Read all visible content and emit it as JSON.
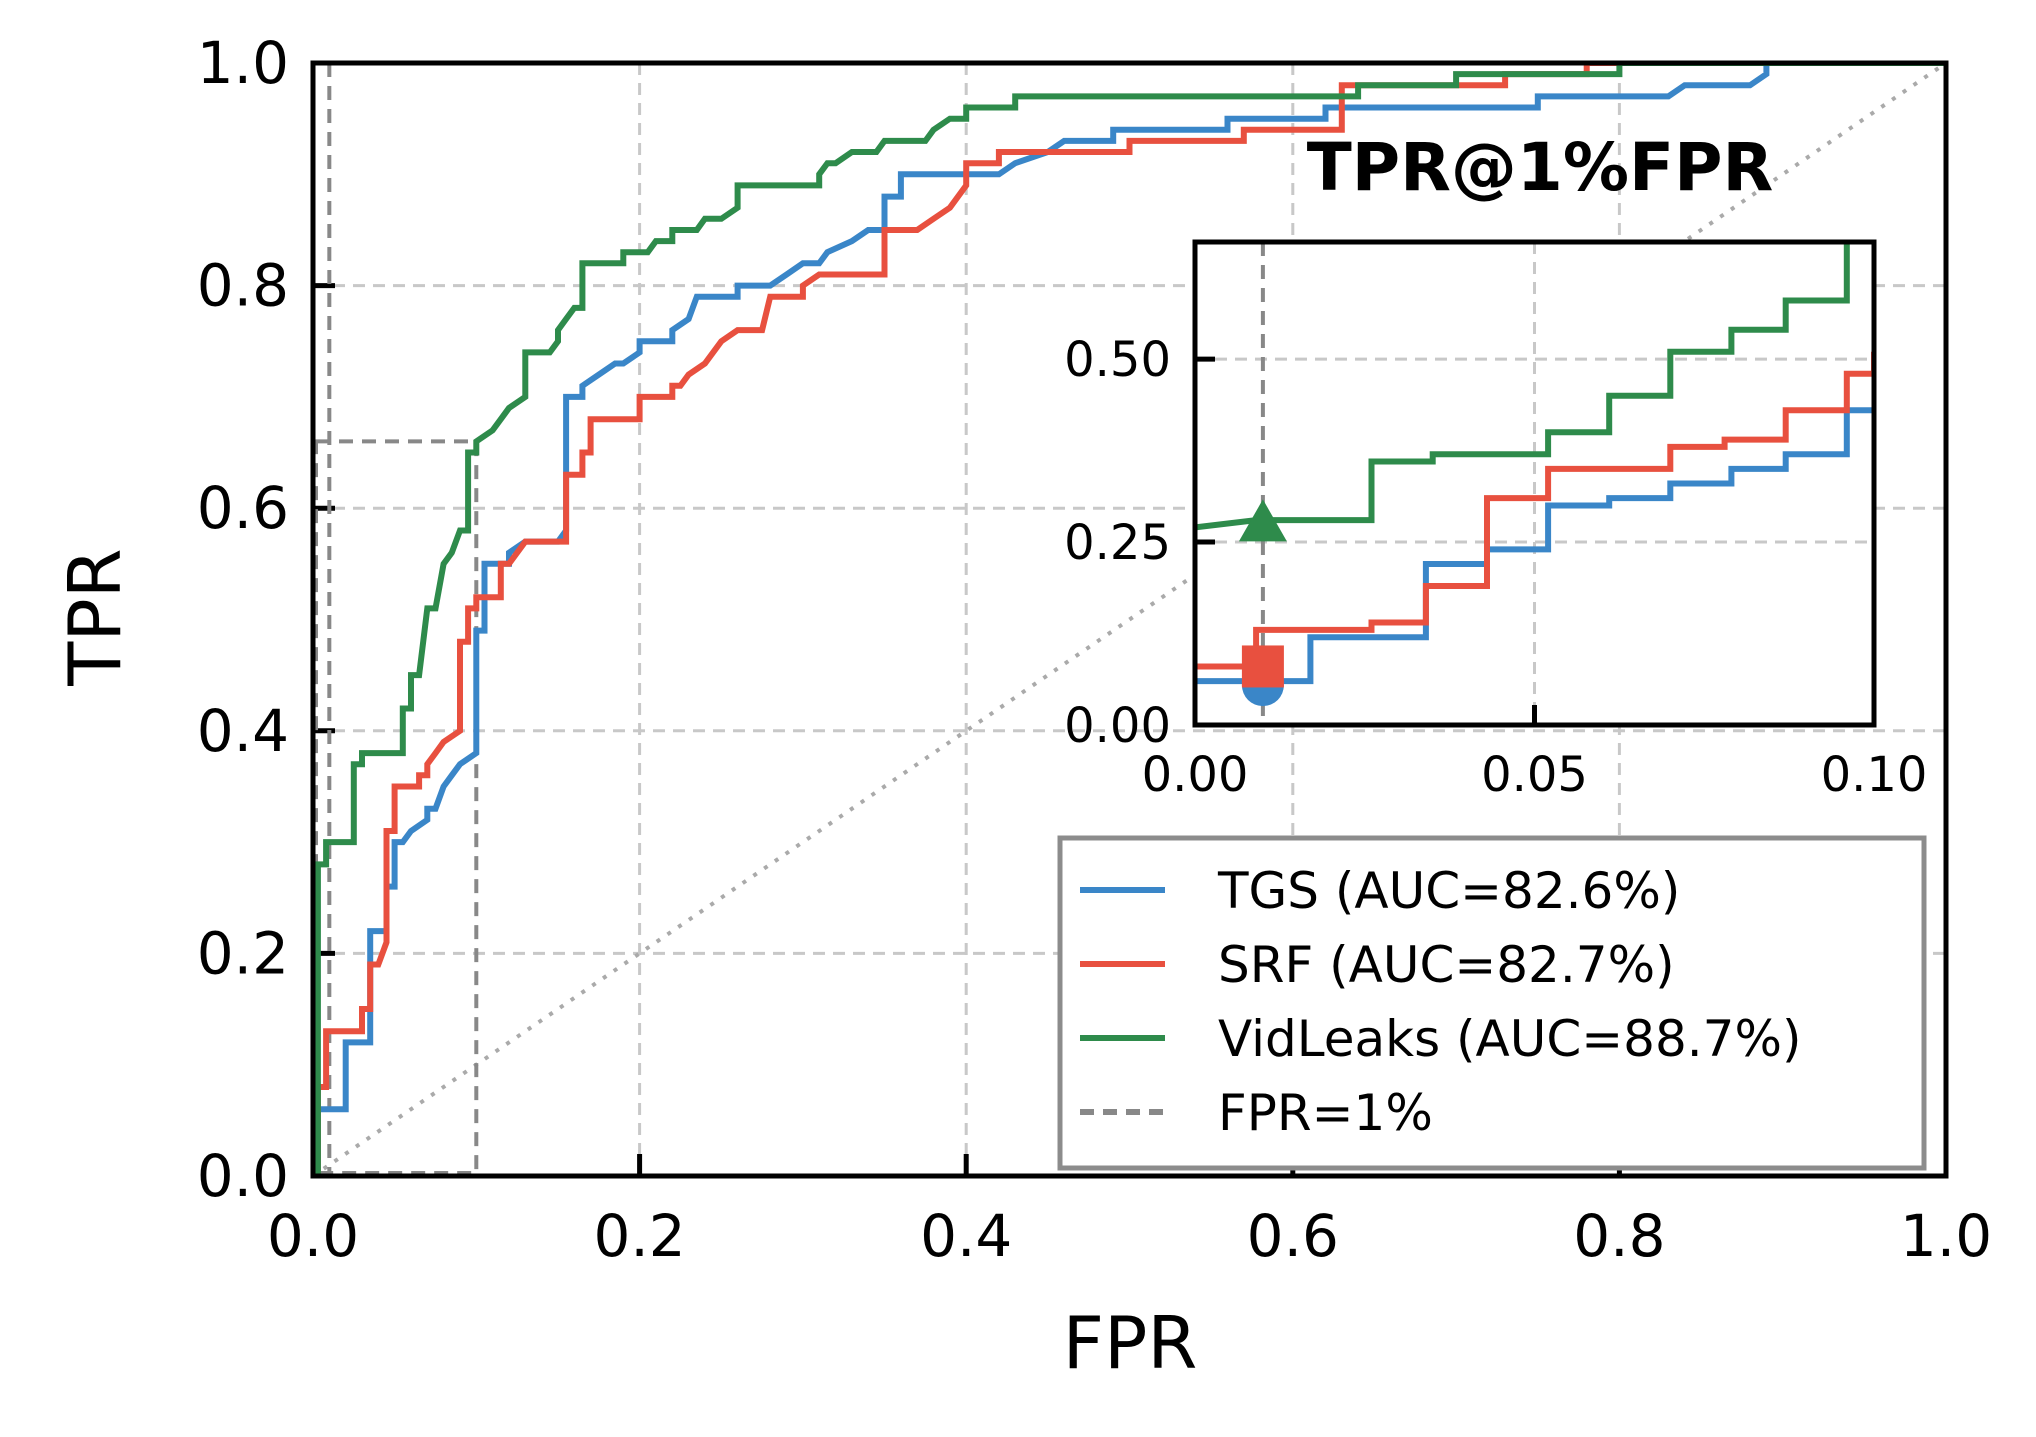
{
  "chart_data": {
    "type": "line",
    "title": "",
    "xlabel": "FPR",
    "ylabel": "TPR",
    "xlim": [
      0,
      1
    ],
    "ylim": [
      0,
      1
    ],
    "grid": true,
    "legend_position": "lower-right",
    "xticks": [
      "0.0",
      "0.2",
      "0.4",
      "0.6",
      "0.8",
      "1.0"
    ],
    "yticks": [
      "0.0",
      "0.2",
      "0.4",
      "0.6",
      "0.8",
      "1.0"
    ],
    "colors": {
      "TGS": "#3a86c8",
      "SRF": "#e8503f",
      "VidLeaks": "#2e8b4b",
      "FPR=1%": "#888888",
      "chance": "#aaaaaa"
    },
    "series": [
      {
        "name": "TGS (AUC=82.6%)",
        "key": "TGS",
        "points": [
          [
            0,
            0
          ],
          [
            0.003,
            0
          ],
          [
            0.003,
            0.06
          ],
          [
            0.01,
            0.06
          ],
          [
            0.01,
            0.06
          ],
          [
            0.02,
            0.06
          ],
          [
            0.02,
            0.12
          ],
          [
            0.035,
            0.12
          ],
          [
            0.035,
            0.22
          ],
          [
            0.045,
            0.22
          ],
          [
            0.045,
            0.26
          ],
          [
            0.05,
            0.26
          ],
          [
            0.05,
            0.3
          ],
          [
            0.055,
            0.3
          ],
          [
            0.06,
            0.31
          ],
          [
            0.07,
            0.32
          ],
          [
            0.07,
            0.33
          ],
          [
            0.075,
            0.33
          ],
          [
            0.08,
            0.35
          ],
          [
            0.085,
            0.36
          ],
          [
            0.09,
            0.37
          ],
          [
            0.1,
            0.38
          ],
          [
            0.1,
            0.43
          ],
          [
            0.1,
            0.49
          ],
          [
            0.105,
            0.49
          ],
          [
            0.105,
            0.55
          ],
          [
            0.12,
            0.55
          ],
          [
            0.12,
            0.56
          ],
          [
            0.13,
            0.57
          ],
          [
            0.15,
            0.57
          ],
          [
            0.155,
            0.58
          ],
          [
            0.155,
            0.7
          ],
          [
            0.165,
            0.7
          ],
          [
            0.165,
            0.71
          ],
          [
            0.175,
            0.72
          ],
          [
            0.185,
            0.73
          ],
          [
            0.19,
            0.73
          ],
          [
            0.2,
            0.74
          ],
          [
            0.2,
            0.75
          ],
          [
            0.22,
            0.75
          ],
          [
            0.22,
            0.76
          ],
          [
            0.23,
            0.77
          ],
          [
            0.235,
            0.79
          ],
          [
            0.26,
            0.79
          ],
          [
            0.26,
            0.8
          ],
          [
            0.28,
            0.8
          ],
          [
            0.29,
            0.81
          ],
          [
            0.3,
            0.82
          ],
          [
            0.31,
            0.82
          ],
          [
            0.315,
            0.83
          ],
          [
            0.33,
            0.84
          ],
          [
            0.34,
            0.85
          ],
          [
            0.35,
            0.85
          ],
          [
            0.35,
            0.88
          ],
          [
            0.36,
            0.88
          ],
          [
            0.36,
            0.9
          ],
          [
            0.42,
            0.9
          ],
          [
            0.43,
            0.91
          ],
          [
            0.45,
            0.92
          ],
          [
            0.46,
            0.93
          ],
          [
            0.49,
            0.93
          ],
          [
            0.49,
            0.94
          ],
          [
            0.56,
            0.94
          ],
          [
            0.56,
            0.95
          ],
          [
            0.62,
            0.95
          ],
          [
            0.62,
            0.96
          ],
          [
            0.75,
            0.96
          ],
          [
            0.75,
            0.97
          ],
          [
            0.83,
            0.97
          ],
          [
            0.84,
            0.98
          ],
          [
            0.88,
            0.98
          ],
          [
            0.89,
            0.99
          ],
          [
            0.89,
            1.0
          ],
          [
            1.0,
            1.0
          ]
        ]
      },
      {
        "name": "SRF (AUC=82.7%)",
        "key": "SRF",
        "points": [
          [
            0,
            0
          ],
          [
            0.003,
            0
          ],
          [
            0.003,
            0.08
          ],
          [
            0.008,
            0.08
          ],
          [
            0.008,
            0.13
          ],
          [
            0.03,
            0.13
          ],
          [
            0.03,
            0.15
          ],
          [
            0.035,
            0.15
          ],
          [
            0.035,
            0.19
          ],
          [
            0.04,
            0.19
          ],
          [
            0.045,
            0.21
          ],
          [
            0.045,
            0.31
          ],
          [
            0.05,
            0.31
          ],
          [
            0.05,
            0.35
          ],
          [
            0.065,
            0.35
          ],
          [
            0.065,
            0.36
          ],
          [
            0.07,
            0.36
          ],
          [
            0.07,
            0.37
          ],
          [
            0.075,
            0.38
          ],
          [
            0.08,
            0.39
          ],
          [
            0.09,
            0.4
          ],
          [
            0.09,
            0.48
          ],
          [
            0.095,
            0.48
          ],
          [
            0.095,
            0.51
          ],
          [
            0.1,
            0.51
          ],
          [
            0.1,
            0.52
          ],
          [
            0.115,
            0.52
          ],
          [
            0.115,
            0.55
          ],
          [
            0.12,
            0.55
          ],
          [
            0.13,
            0.57
          ],
          [
            0.155,
            0.57
          ],
          [
            0.155,
            0.63
          ],
          [
            0.165,
            0.63
          ],
          [
            0.165,
            0.65
          ],
          [
            0.17,
            0.65
          ],
          [
            0.17,
            0.68
          ],
          [
            0.2,
            0.68
          ],
          [
            0.2,
            0.7
          ],
          [
            0.22,
            0.7
          ],
          [
            0.22,
            0.71
          ],
          [
            0.225,
            0.71
          ],
          [
            0.23,
            0.72
          ],
          [
            0.24,
            0.73
          ],
          [
            0.25,
            0.75
          ],
          [
            0.26,
            0.76
          ],
          [
            0.275,
            0.76
          ],
          [
            0.28,
            0.79
          ],
          [
            0.3,
            0.79
          ],
          [
            0.3,
            0.8
          ],
          [
            0.31,
            0.81
          ],
          [
            0.35,
            0.81
          ],
          [
            0.35,
            0.85
          ],
          [
            0.37,
            0.85
          ],
          [
            0.38,
            0.86
          ],
          [
            0.39,
            0.87
          ],
          [
            0.4,
            0.89
          ],
          [
            0.4,
            0.91
          ],
          [
            0.42,
            0.91
          ],
          [
            0.42,
            0.92
          ],
          [
            0.5,
            0.92
          ],
          [
            0.5,
            0.93
          ],
          [
            0.57,
            0.93
          ],
          [
            0.57,
            0.94
          ],
          [
            0.63,
            0.94
          ],
          [
            0.63,
            0.97
          ],
          [
            0.63,
            0.98
          ],
          [
            0.73,
            0.98
          ],
          [
            0.73,
            0.99
          ],
          [
            0.78,
            0.99
          ],
          [
            0.78,
            1.0
          ],
          [
            1.0,
            1.0
          ]
        ]
      },
      {
        "name": "VidLeaks (AUC=88.7%)",
        "key": "VidLeaks",
        "points": [
          [
            0,
            0
          ],
          [
            0.003,
            0
          ],
          [
            0.003,
            0.28
          ],
          [
            0.008,
            0.28
          ],
          [
            0.008,
            0.3
          ],
          [
            0.025,
            0.3
          ],
          [
            0.025,
            0.37
          ],
          [
            0.03,
            0.37
          ],
          [
            0.03,
            0.38
          ],
          [
            0.05,
            0.38
          ],
          [
            0.05,
            0.38
          ],
          [
            0.055,
            0.38
          ],
          [
            0.055,
            0.42
          ],
          [
            0.06,
            0.42
          ],
          [
            0.06,
            0.45
          ],
          [
            0.065,
            0.45
          ],
          [
            0.07,
            0.51
          ],
          [
            0.075,
            0.51
          ],
          [
            0.08,
            0.55
          ],
          [
            0.085,
            0.56
          ],
          [
            0.09,
            0.58
          ],
          [
            0.095,
            0.58
          ],
          [
            0.095,
            0.65
          ],
          [
            0.1,
            0.65
          ],
          [
            0.1,
            0.66
          ],
          [
            0.11,
            0.67
          ],
          [
            0.115,
            0.68
          ],
          [
            0.12,
            0.69
          ],
          [
            0.13,
            0.7
          ],
          [
            0.13,
            0.74
          ],
          [
            0.145,
            0.74
          ],
          [
            0.15,
            0.75
          ],
          [
            0.15,
            0.76
          ],
          [
            0.155,
            0.77
          ],
          [
            0.16,
            0.78
          ],
          [
            0.165,
            0.78
          ],
          [
            0.165,
            0.82
          ],
          [
            0.19,
            0.82
          ],
          [
            0.19,
            0.83
          ],
          [
            0.205,
            0.83
          ],
          [
            0.21,
            0.84
          ],
          [
            0.22,
            0.84
          ],
          [
            0.22,
            0.85
          ],
          [
            0.235,
            0.85
          ],
          [
            0.24,
            0.86
          ],
          [
            0.25,
            0.86
          ],
          [
            0.26,
            0.87
          ],
          [
            0.26,
            0.89
          ],
          [
            0.31,
            0.89
          ],
          [
            0.31,
            0.9
          ],
          [
            0.315,
            0.91
          ],
          [
            0.32,
            0.91
          ],
          [
            0.33,
            0.92
          ],
          [
            0.345,
            0.92
          ],
          [
            0.35,
            0.93
          ],
          [
            0.375,
            0.93
          ],
          [
            0.38,
            0.94
          ],
          [
            0.39,
            0.95
          ],
          [
            0.4,
            0.95
          ],
          [
            0.4,
            0.96
          ],
          [
            0.43,
            0.96
          ],
          [
            0.43,
            0.97
          ],
          [
            0.64,
            0.97
          ],
          [
            0.64,
            0.98
          ],
          [
            0.7,
            0.98
          ],
          [
            0.7,
            0.99
          ],
          [
            0.8,
            0.99
          ],
          [
            0.8,
            1.0
          ],
          [
            1.0,
            1.0
          ]
        ]
      }
    ],
    "chance_line": [
      [
        0,
        0
      ],
      [
        1,
        1
      ]
    ],
    "fpr_line": {
      "name": "FPR=1%",
      "x": 0.01
    },
    "zoom_box": {
      "x0": 0.0,
      "x1": 0.1,
      "y0": 0.0,
      "y1": 0.66
    },
    "inset": {
      "title": "TPR@1%FPR",
      "xlim": [
        0,
        0.1
      ],
      "ylim": [
        0,
        0.66
      ],
      "xticks": [
        "0.00",
        "0.05",
        "0.10"
      ],
      "yticks": [
        "0.00",
        "0.25",
        "0.50"
      ],
      "xtick_values": [
        0,
        0.05,
        0.1
      ],
      "ytick_values": [
        0,
        0.25,
        0.5
      ],
      "series": [
        {
          "key": "TGS",
          "points": [
            [
              0,
              0.06
            ],
            [
              0.017,
              0.06
            ],
            [
              0.017,
              0.12
            ],
            [
              0.034,
              0.12
            ],
            [
              0.034,
              0.22
            ],
            [
              0.043,
              0.22
            ],
            [
              0.043,
              0.24
            ],
            [
              0.052,
              0.24
            ],
            [
              0.052,
              0.3
            ],
            [
              0.061,
              0.3
            ],
            [
              0.061,
              0.31
            ],
            [
              0.07,
              0.31
            ],
            [
              0.07,
              0.33
            ],
            [
              0.079,
              0.33
            ],
            [
              0.079,
              0.35
            ],
            [
              0.087,
              0.35
            ],
            [
              0.087,
              0.37
            ],
            [
              0.096,
              0.37
            ],
            [
              0.096,
              0.43
            ],
            [
              0.1,
              0.43
            ]
          ]
        },
        {
          "key": "SRF",
          "points": [
            [
              0,
              0.08
            ],
            [
              0.009,
              0.08
            ],
            [
              0.009,
              0.13
            ],
            [
              0.026,
              0.13
            ],
            [
              0.026,
              0.14
            ],
            [
              0.034,
              0.14
            ],
            [
              0.034,
              0.19
            ],
            [
              0.043,
              0.19
            ],
            [
              0.043,
              0.31
            ],
            [
              0.052,
              0.31
            ],
            [
              0.052,
              0.35
            ],
            [
              0.07,
              0.35
            ],
            [
              0.07,
              0.38
            ],
            [
              0.078,
              0.38
            ],
            [
              0.078,
              0.39
            ],
            [
              0.087,
              0.39
            ],
            [
              0.087,
              0.43
            ],
            [
              0.096,
              0.43
            ],
            [
              0.096,
              0.48
            ],
            [
              0.1,
              0.48
            ],
            [
              0.1,
              0.51
            ]
          ]
        },
        {
          "key": "VidLeaks",
          "points": [
            [
              0,
              0.27
            ],
            [
              0.009,
              0.28
            ],
            [
              0.026,
              0.28
            ],
            [
              0.026,
              0.36
            ],
            [
              0.035,
              0.36
            ],
            [
              0.035,
              0.37
            ],
            [
              0.052,
              0.37
            ],
            [
              0.052,
              0.4
            ],
            [
              0.061,
              0.4
            ],
            [
              0.061,
              0.45
            ],
            [
              0.07,
              0.45
            ],
            [
              0.07,
              0.51
            ],
            [
              0.079,
              0.51
            ],
            [
              0.079,
              0.54
            ],
            [
              0.087,
              0.54
            ],
            [
              0.087,
              0.58
            ],
            [
              0.096,
              0.58
            ],
            [
              0.096,
              0.66
            ]
          ]
        }
      ],
      "markers": [
        {
          "key": "TGS",
          "shape": "circle",
          "x": 0.01,
          "y": 0.06
        },
        {
          "key": "SRF",
          "shape": "square",
          "x": 0.01,
          "y": 0.08
        },
        {
          "key": "VidLeaks",
          "shape": "triangle",
          "x": 0.01,
          "y": 0.27
        }
      ]
    }
  }
}
